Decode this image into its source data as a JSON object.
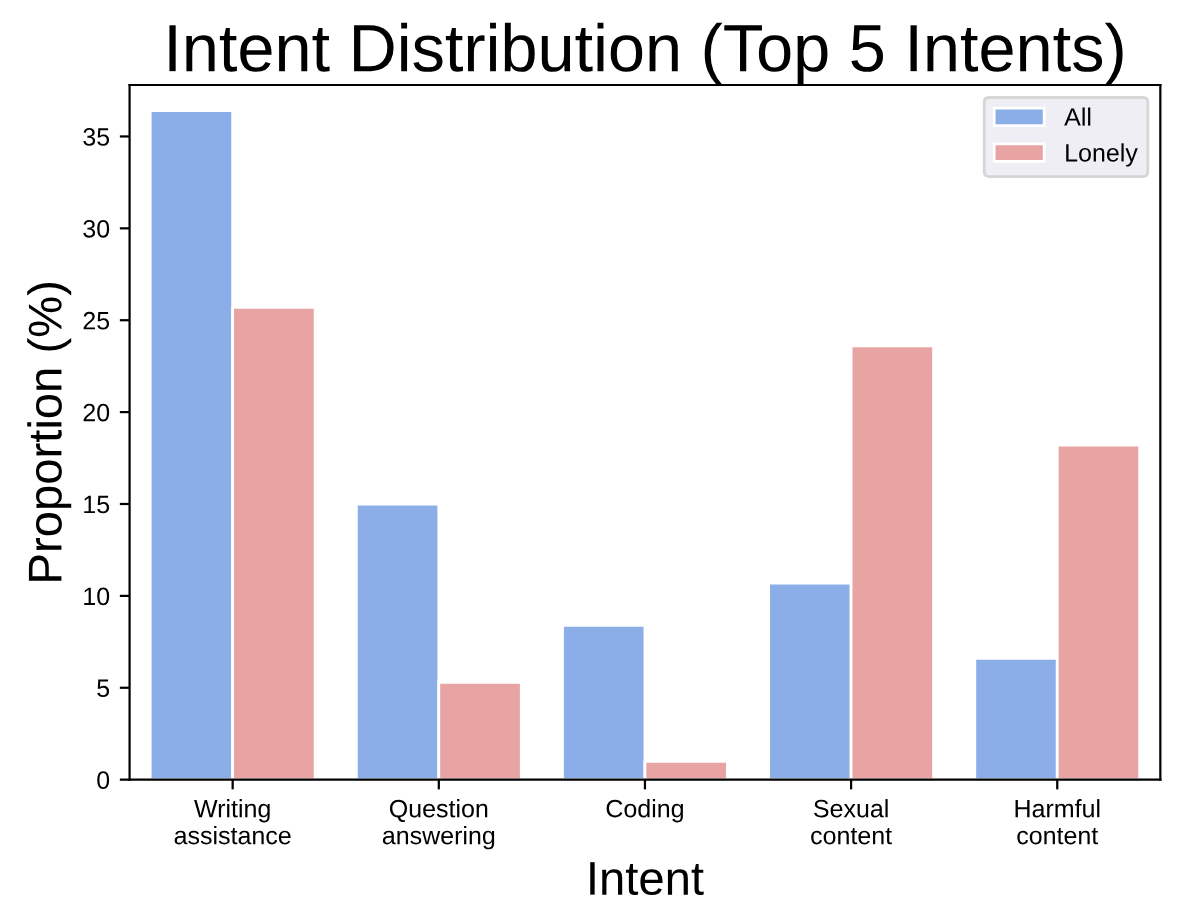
{
  "chart_data": {
    "type": "bar",
    "title": "Intent Distribution (Top 5 Intents)",
    "xlabel": "Intent",
    "ylabel": "Proportion (%)",
    "categories": [
      "Writing\nassistance",
      "Question\nanswering",
      "Coding",
      "Sexual\ncontent",
      "Harmful\ncontent"
    ],
    "series": [
      {
        "name": "All",
        "color": "#8caee8",
        "values": [
          36.4,
          15.0,
          8.4,
          10.7,
          6.6
        ]
      },
      {
        "name": "Lonely",
        "color": "#e8a3a3",
        "values": [
          25.7,
          5.3,
          1.0,
          23.6,
          18.2
        ]
      }
    ],
    "ylim": [
      0,
      37.8
    ],
    "yticks": [
      0,
      5,
      10,
      15,
      20,
      25,
      30,
      35
    ],
    "grid": false,
    "legend": "top right"
  }
}
